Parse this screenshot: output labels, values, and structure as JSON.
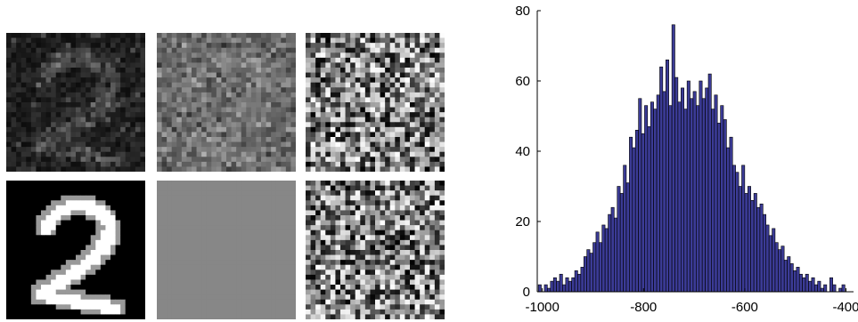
{
  "images": [
    {
      "id": "noisy-digit-sample",
      "kind": "noisy-digit"
    },
    {
      "id": "gray-noise-sample",
      "kind": "gray-noise"
    },
    {
      "id": "random-noise-sample-top",
      "kind": "random-noise"
    },
    {
      "id": "clean-digit-2",
      "kind": "clean-digit"
    },
    {
      "id": "uniform-gray",
      "kind": "uniform-gray"
    },
    {
      "id": "random-noise-sample-bottom",
      "kind": "random-noise"
    }
  ],
  "colors": {
    "bar_fill": "#3b3b96",
    "bar_edge": "#000000",
    "axis": "#000000",
    "uniform_gray": "#878787"
  },
  "chart_data": {
    "type": "bar",
    "title": "",
    "xlabel": "",
    "ylabel": "",
    "xlim": [
      -1010,
      -385
    ],
    "ylim": [
      0,
      80
    ],
    "xticks": [
      -1000,
      -800,
      -600,
      -400
    ],
    "xtick_labels": [
      "-1000",
      "-800",
      "-600",
      "-400"
    ],
    "yticks": [
      0,
      20,
      40,
      60,
      80
    ],
    "ytick_labels": [
      "0",
      "20",
      "40",
      "60",
      "80"
    ],
    "grid": false,
    "bin_width": 5.9,
    "bins": [
      {
        "x": -1005,
        "y": 2
      },
      {
        "x": -999,
        "y": 0
      },
      {
        "x": -993,
        "y": 2
      },
      {
        "x": -987,
        "y": 1
      },
      {
        "x": -981,
        "y": 3
      },
      {
        "x": -975,
        "y": 4
      },
      {
        "x": -969,
        "y": 3
      },
      {
        "x": -963,
        "y": 5
      },
      {
        "x": -957,
        "y": 2
      },
      {
        "x": -951,
        "y": 4
      },
      {
        "x": -945,
        "y": 3
      },
      {
        "x": -939,
        "y": 4
      },
      {
        "x": -933,
        "y": 6
      },
      {
        "x": -927,
        "y": 5
      },
      {
        "x": -921,
        "y": 7
      },
      {
        "x": -915,
        "y": 10
      },
      {
        "x": -909,
        "y": 12
      },
      {
        "x": -903,
        "y": 11
      },
      {
        "x": -897,
        "y": 14
      },
      {
        "x": -891,
        "y": 17
      },
      {
        "x": -885,
        "y": 14
      },
      {
        "x": -879,
        "y": 19
      },
      {
        "x": -873,
        "y": 18
      },
      {
        "x": -867,
        "y": 22
      },
      {
        "x": -861,
        "y": 24
      },
      {
        "x": -855,
        "y": 21
      },
      {
        "x": -849,
        "y": 30
      },
      {
        "x": -843,
        "y": 28
      },
      {
        "x": -837,
        "y": 36
      },
      {
        "x": -831,
        "y": 31
      },
      {
        "x": -825,
        "y": 44
      },
      {
        "x": -819,
        "y": 41
      },
      {
        "x": -813,
        "y": 46
      },
      {
        "x": -807,
        "y": 55
      },
      {
        "x": -801,
        "y": 45
      },
      {
        "x": -795,
        "y": 53
      },
      {
        "x": -789,
        "y": 47
      },
      {
        "x": -783,
        "y": 54
      },
      {
        "x": -777,
        "y": 52
      },
      {
        "x": -771,
        "y": 56
      },
      {
        "x": -765,
        "y": 64
      },
      {
        "x": -759,
        "y": 57
      },
      {
        "x": -753,
        "y": 66
      },
      {
        "x": -747,
        "y": 53
      },
      {
        "x": -741,
        "y": 76
      },
      {
        "x": -735,
        "y": 61
      },
      {
        "x": -729,
        "y": 54
      },
      {
        "x": -723,
        "y": 58
      },
      {
        "x": -717,
        "y": 52
      },
      {
        "x": -711,
        "y": 60
      },
      {
        "x": -705,
        "y": 55
      },
      {
        "x": -699,
        "y": 57
      },
      {
        "x": -693,
        "y": 53
      },
      {
        "x": -687,
        "y": 60
      },
      {
        "x": -681,
        "y": 55
      },
      {
        "x": -675,
        "y": 58
      },
      {
        "x": -669,
        "y": 62
      },
      {
        "x": -663,
        "y": 52
      },
      {
        "x": -657,
        "y": 56
      },
      {
        "x": -651,
        "y": 48
      },
      {
        "x": -645,
        "y": 53
      },
      {
        "x": -639,
        "y": 49
      },
      {
        "x": -633,
        "y": 41
      },
      {
        "x": -627,
        "y": 44
      },
      {
        "x": -621,
        "y": 36
      },
      {
        "x": -615,
        "y": 34
      },
      {
        "x": -609,
        "y": 30
      },
      {
        "x": -603,
        "y": 36
      },
      {
        "x": -597,
        "y": 28
      },
      {
        "x": -591,
        "y": 30
      },
      {
        "x": -585,
        "y": 26
      },
      {
        "x": -579,
        "y": 28
      },
      {
        "x": -573,
        "y": 24
      },
      {
        "x": -567,
        "y": 25
      },
      {
        "x": -561,
        "y": 22
      },
      {
        "x": -555,
        "y": 19
      },
      {
        "x": -549,
        "y": 16
      },
      {
        "x": -543,
        "y": 18
      },
      {
        "x": -537,
        "y": 14
      },
      {
        "x": -531,
        "y": 12
      },
      {
        "x": -525,
        "y": 13
      },
      {
        "x": -519,
        "y": 9
      },
      {
        "x": -513,
        "y": 10
      },
      {
        "x": -507,
        "y": 8
      },
      {
        "x": -501,
        "y": 6
      },
      {
        "x": -495,
        "y": 7
      },
      {
        "x": -489,
        "y": 5
      },
      {
        "x": -483,
        "y": 4
      },
      {
        "x": -477,
        "y": 5
      },
      {
        "x": -471,
        "y": 3
      },
      {
        "x": -465,
        "y": 4
      },
      {
        "x": -459,
        "y": 2
      },
      {
        "x": -453,
        "y": 3
      },
      {
        "x": -447,
        "y": 1
      },
      {
        "x": -441,
        "y": 2
      },
      {
        "x": -435,
        "y": 0
      },
      {
        "x": -429,
        "y": 4
      },
      {
        "x": -423,
        "y": 2
      },
      {
        "x": -417,
        "y": 0
      },
      {
        "x": -411,
        "y": 1
      },
      {
        "x": -405,
        "y": 2
      }
    ]
  }
}
